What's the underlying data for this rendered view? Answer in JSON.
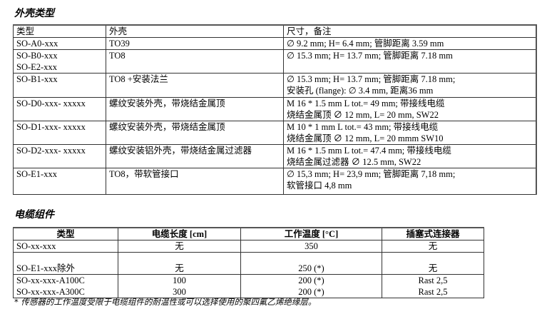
{
  "section1": {
    "title": "外壳类型",
    "headers": [
      "类型",
      "外壳",
      "尺寸，备注"
    ],
    "rows": [
      {
        "type": [
          "SO-A0-xxx"
        ],
        "housing": "TO39",
        "dims": [
          "∅ 9.2 mm; H= 6.4 mm; 管脚距离 3.59 mm"
        ]
      },
      {
        "type": [
          "SO-B0-xxx",
          "SO-E2-xxx"
        ],
        "housing": "TO8",
        "dims": [
          "∅ 15.3 mm; H= 13.7 mm; 管脚距离 7.18 mm"
        ]
      },
      {
        "type": [
          "SO-B1-xxx"
        ],
        "housing": "TO8 +安装法兰",
        "dims": [
          "∅  15.3  mm;  H=  13.7  mm;  管脚距离 7.18  mm;",
          "安装孔 (flange): ∅ 3.4 mm, 距离36 mm"
        ]
      },
      {
        "type": [
          "SO-D0-xxx- xxxxx"
        ],
        "housing": "螺纹安装外壳，带烧结金属顶",
        "dims": [
          "M 16 * 1.5 mm L tot.= 49 mm; 带接线电缆",
          "烧结金属顶 ∅ 12 mm, L= 20 mm, SW22"
        ]
      },
      {
        "type": [
          "SO-D1-xxx- xxxxx"
        ],
        "housing": "螺纹安装外壳，带烧结金属顶",
        "dims": [
          "M 10 * 1 mm L tot.= 43 mm; 带接线电缆",
          "烧结金属顶 ∅ 12 mm, L= 20 mmm SW10"
        ]
      },
      {
        "type": [
          "SO-D2-xxx- xxxxx"
        ],
        "housing": "螺纹安装铝外壳，带烧结金属过滤器",
        "dims": [
          "M 16 * 1.5 mm L tot.= 47.4 mm; 带接线电缆",
          "烧结金属过滤器 ∅ 12.5 mm, SW22"
        ]
      },
      {
        "type": [
          "SO-E1-xxx"
        ],
        "housing": "TO8，带软管接口",
        "dims": [
          "∅ 15,3 mm; H= 23,9 mm; 管脚距离 7,18 mm;",
          "软管接口 4,8 mm"
        ]
      }
    ]
  },
  "section2": {
    "title": "电缆组件",
    "headers": [
      "类型",
      "电缆长度 [cm]",
      "工作温度 [°C]",
      "插塞式连接器"
    ],
    "rows": [
      [
        "SO-xx-xxx",
        "无",
        "350",
        "无"
      ],
      [
        "SO-E1-xxx除外",
        "无",
        "250 (*)",
        "无"
      ],
      [
        "SO-xx-xxx-A100C",
        "100",
        "200 (*)",
        "Rast 2,5"
      ],
      [
        "SO-xx-xxx-A300C",
        "300",
        "200 (*)",
        "Rast 2,5"
      ]
    ],
    "footnote": "* 传感器的工作温度受限于电缆组件的耐温性或可以选择使用的聚四氟乙烯绝缘层。"
  }
}
